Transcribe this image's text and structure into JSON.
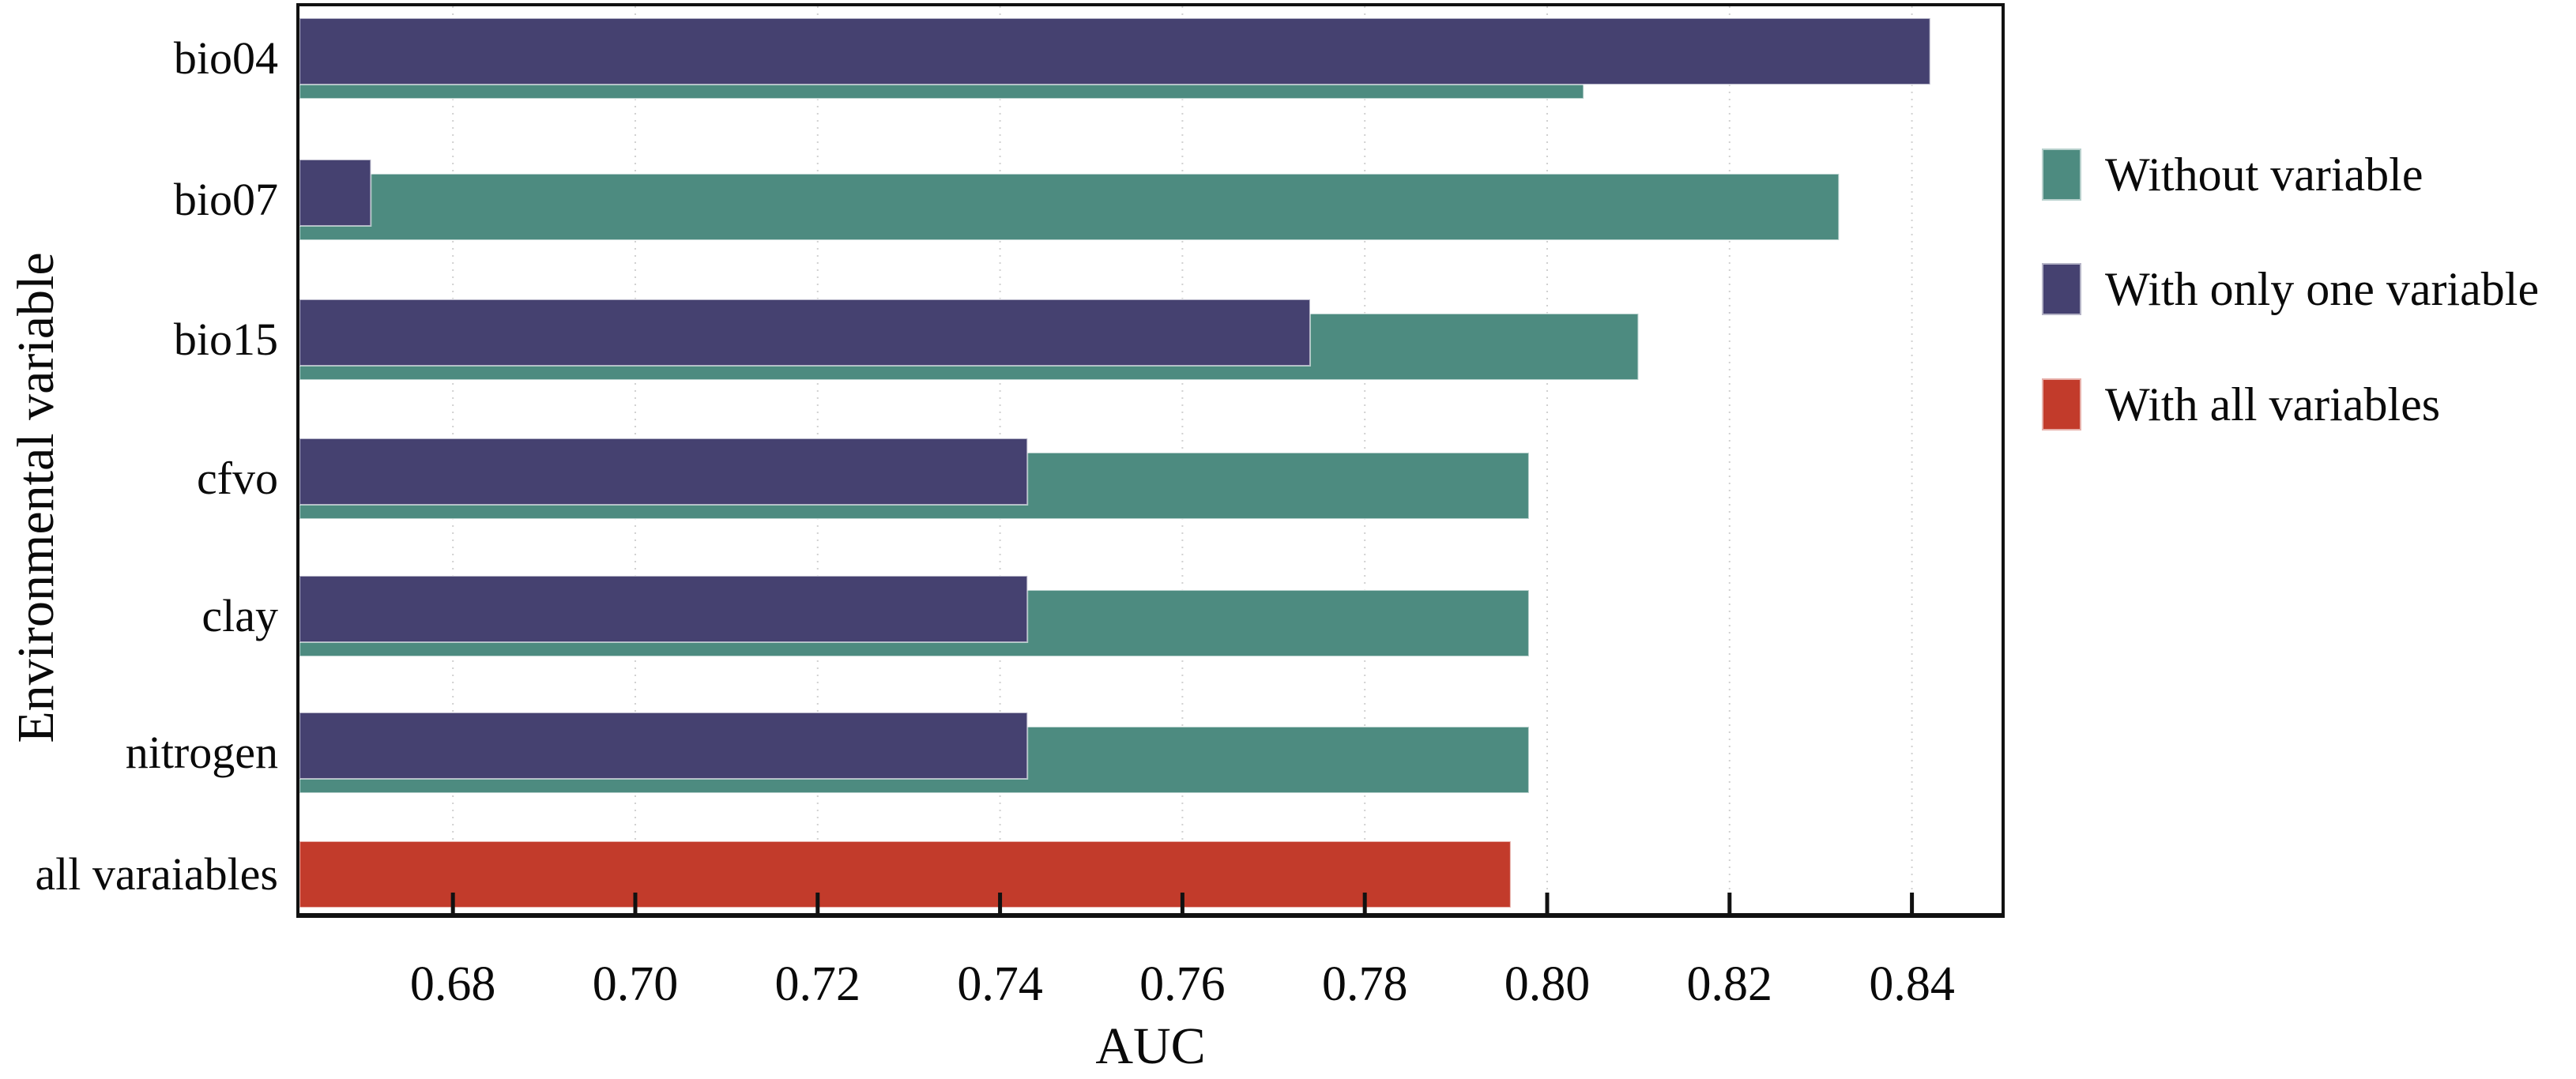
{
  "figure": {
    "x_axis": {
      "title": "AUC",
      "tick_labels": [
        "0.68",
        "0.70",
        "0.72",
        "0.74",
        "0.76",
        "0.78",
        "0.80",
        "0.82",
        "0.84"
      ]
    },
    "y_axis": {
      "title": "Environmental variable"
    },
    "legend": {
      "items": [
        {
          "label": "Without variable",
          "color": "#4d8b80"
        },
        {
          "label": "With only one variable",
          "color": "#454170"
        },
        {
          "label": "With all variables",
          "color": "#c23b2b"
        }
      ]
    }
  },
  "chart_data": {
    "type": "bar",
    "orientation": "horizontal",
    "title": "",
    "xlabel": "AUC",
    "ylabel": "Environmental variable",
    "categories": [
      "bio04",
      "bio07",
      "bio15",
      "cfvo",
      "clay",
      "nitrogen",
      "all varaiables"
    ],
    "series": [
      {
        "name": "Without variable",
        "color": "#4d8b80",
        "values": [
          0.804,
          0.832,
          0.81,
          0.798,
          0.798,
          0.798,
          null
        ]
      },
      {
        "name": "With only one variable",
        "color": "#454170",
        "values": [
          0.842,
          0.671,
          0.774,
          0.743,
          0.743,
          0.743,
          null
        ]
      },
      {
        "name": "With all variables",
        "color": "#c23b2b",
        "values": [
          null,
          null,
          null,
          null,
          null,
          null,
          0.796
        ]
      }
    ],
    "xlim": [
      0.663,
      0.85
    ],
    "xticks": [
      0.68,
      0.7,
      0.72,
      0.74,
      0.76,
      0.78,
      0.8,
      0.82,
      0.84
    ],
    "grid": "faint dotted vertical gridlines at x ticks",
    "legend_position": "outside right, top",
    "frame": "full box frame, ticks inside pointing up from bottom axis"
  }
}
